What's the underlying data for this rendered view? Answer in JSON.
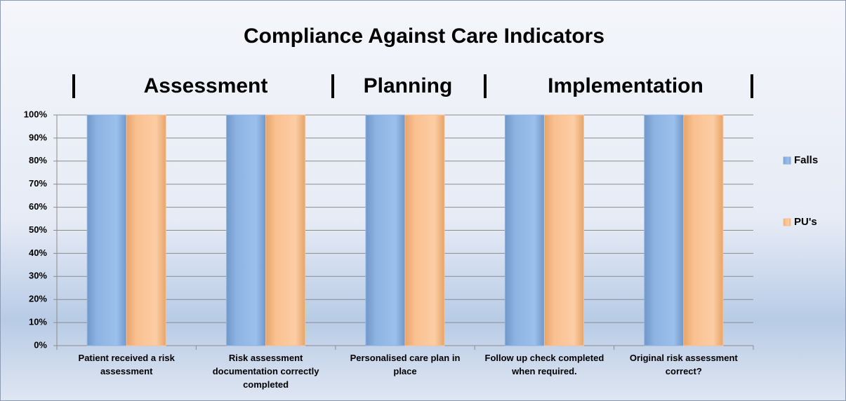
{
  "chart_data": {
    "type": "bar",
    "title": "Compliance Against Care Indicators",
    "annotations": [
      "Assessment",
      "Planning",
      "Implementation"
    ],
    "categories": [
      "Patient received a risk assessment",
      "Risk assessment documentation correctly completed",
      "Personalised care plan in place",
      "Follow up check completed when required.",
      "Original risk assessment correct?"
    ],
    "series": [
      {
        "name": "Falls",
        "color": "#8db3e2",
        "values": [
          100,
          100,
          100,
          100,
          100
        ]
      },
      {
        "name": "PU's",
        "color": "#fac090",
        "values": [
          100,
          100,
          100,
          100,
          100
        ]
      }
    ],
    "ylim": [
      0,
      100
    ],
    "yticks": [
      {
        "value": 0,
        "label": "0%"
      },
      {
        "value": 10,
        "label": "10%"
      },
      {
        "value": 20,
        "label": "20%"
      },
      {
        "value": 30,
        "label": "30%"
      },
      {
        "value": 40,
        "label": "40%"
      },
      {
        "value": 50,
        "label": "50%"
      },
      {
        "value": 60,
        "label": "60%"
      },
      {
        "value": 70,
        "label": "70%"
      },
      {
        "value": 80,
        "label": "80%"
      },
      {
        "value": 90,
        "label": "90%"
      },
      {
        "value": 100,
        "label": "100%"
      }
    ],
    "grid": true,
    "legend": "right"
  }
}
